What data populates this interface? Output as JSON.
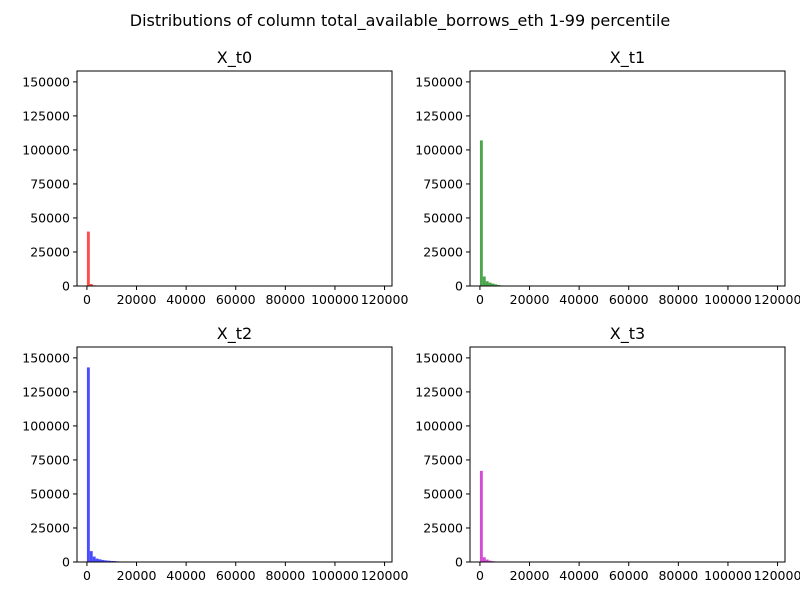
{
  "figure": {
    "title": "Distributions of column total_available_borrows_eth 1-99 percentile"
  },
  "chart_data": [
    {
      "type": "bar",
      "title": "X_t0",
      "color": "#ff0000",
      "xlim": [
        -4000,
        123000
      ],
      "ylim": [
        0,
        158000
      ],
      "xticks": [
        0,
        20000,
        40000,
        60000,
        80000,
        100000,
        120000
      ],
      "xtick_labels": [
        "0",
        "20000",
        "40000",
        "60000",
        "80000",
        "100000",
        "120000"
      ],
      "yticks": [
        0,
        25000,
        50000,
        75000,
        100000,
        125000,
        150000
      ],
      "ytick_labels": [
        "0",
        "25000",
        "50000",
        "75000",
        "100000",
        "125000",
        "150000"
      ],
      "bin_width": 1170,
      "bin_start": 0,
      "values": [
        40000,
        1500,
        500,
        300
      ]
    },
    {
      "type": "bar",
      "title": "X_t1",
      "color": "#008000",
      "xlim": [
        -4000,
        123000
      ],
      "ylim": [
        0,
        158000
      ],
      "xticks": [
        0,
        20000,
        40000,
        60000,
        80000,
        100000,
        120000
      ],
      "xtick_labels": [
        "0",
        "20000",
        "40000",
        "60000",
        "80000",
        "100000",
        "120000"
      ],
      "yticks": [
        0,
        25000,
        50000,
        75000,
        100000,
        125000,
        150000
      ],
      "ytick_labels": [
        "0",
        "25000",
        "50000",
        "75000",
        "100000",
        "125000",
        "150000"
      ],
      "bin_width": 1170,
      "bin_start": 0,
      "values": [
        107000,
        7000,
        3500,
        2500,
        1800,
        1200,
        700,
        400,
        250
      ]
    },
    {
      "type": "bar",
      "title": "X_t2",
      "color": "#0000ff",
      "xlim": [
        -4000,
        123000
      ],
      "ylim": [
        0,
        158000
      ],
      "xticks": [
        0,
        20000,
        40000,
        60000,
        80000,
        100000,
        120000
      ],
      "xtick_labels": [
        "0",
        "20000",
        "40000",
        "60000",
        "80000",
        "100000",
        "120000"
      ],
      "yticks": [
        0,
        25000,
        50000,
        75000,
        100000,
        125000,
        150000
      ],
      "ytick_labels": [
        "0",
        "25000",
        "50000",
        "75000",
        "100000",
        "125000",
        "150000"
      ],
      "bin_width": 1170,
      "bin_start": 0,
      "values": [
        143000,
        8000,
        4000,
        2500,
        2000,
        1500,
        1200,
        1000,
        800,
        700,
        500,
        400,
        300,
        250,
        200,
        150
      ]
    },
    {
      "type": "bar",
      "title": "X_t3",
      "color": "#c000c0",
      "xlim": [
        -4000,
        123000
      ],
      "ylim": [
        0,
        158000
      ],
      "xticks": [
        0,
        20000,
        40000,
        60000,
        80000,
        100000,
        120000
      ],
      "xtick_labels": [
        "0",
        "20000",
        "40000",
        "60000",
        "80000",
        "100000",
        "120000"
      ],
      "yticks": [
        0,
        25000,
        50000,
        75000,
        100000,
        125000,
        150000
      ],
      "ytick_labels": [
        "0",
        "25000",
        "50000",
        "75000",
        "100000",
        "125000",
        "150000"
      ],
      "bin_width": 1170,
      "bin_start": 0,
      "values": [
        67000,
        3500,
        1800,
        1000,
        600,
        400
      ]
    }
  ]
}
